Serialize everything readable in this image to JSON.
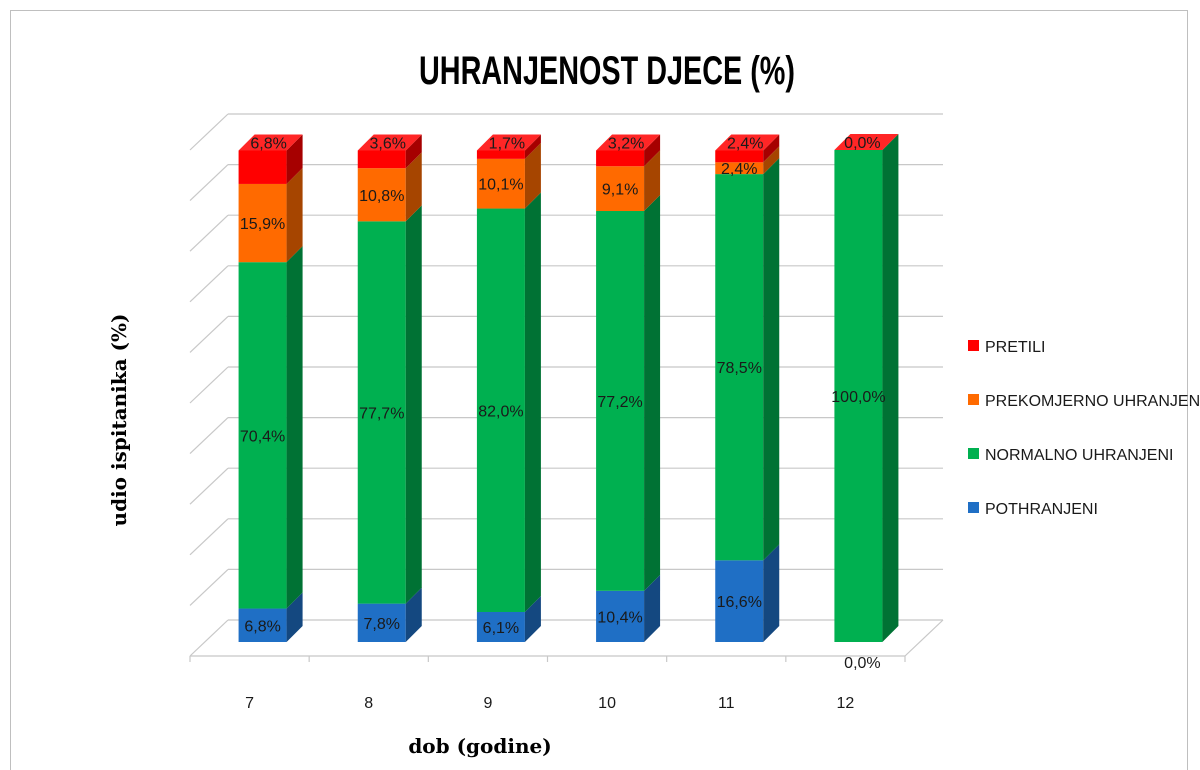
{
  "chart_data": {
    "type": "bar",
    "stacked": true,
    "style": "3d",
    "title": "UHRANJENOST DJECE (%)",
    "xlabel": "dob (godine)",
    "ylabel": "udio ispitanika (%)",
    "ylim": [
      0,
      100
    ],
    "grid": true,
    "legend_position": "right",
    "categories": [
      "7",
      "8",
      "9",
      "10",
      "11",
      "12"
    ],
    "series": [
      {
        "name": "POTHRANJENI",
        "color": "#1f6fc5",
        "values": [
          6.8,
          7.8,
          6.1,
          10.4,
          16.6,
          0.0
        ],
        "labels": [
          "6,8%",
          "7,8%",
          "6,1%",
          "10,4%",
          "16,6%",
          "0,0%"
        ]
      },
      {
        "name": "NORMALNO UHRANJENI",
        "color": "#00b050",
        "values": [
          70.4,
          77.7,
          82.0,
          77.2,
          78.5,
          100.0
        ],
        "labels": [
          "70,4%",
          "77,7%",
          "82,0%",
          "77,2%",
          "78,5%",
          "100,0%"
        ]
      },
      {
        "name": "PREKOMJERNO UHRANJENI",
        "color": "#ff6a00",
        "values": [
          15.9,
          10.8,
          10.1,
          9.1,
          2.4,
          0.0
        ],
        "labels": [
          "15,9%",
          "10,8%",
          "10,1%",
          "9,1%",
          "2,4%",
          ""
        ]
      },
      {
        "name": "PRETILI",
        "color": "#ff0000",
        "values": [
          6.8,
          3.6,
          1.7,
          3.2,
          2.4,
          0.0
        ],
        "labels": [
          "6,8%",
          "3,6%",
          "1,7%",
          "3,2%",
          "2,4%",
          "0,0%"
        ]
      }
    ]
  }
}
